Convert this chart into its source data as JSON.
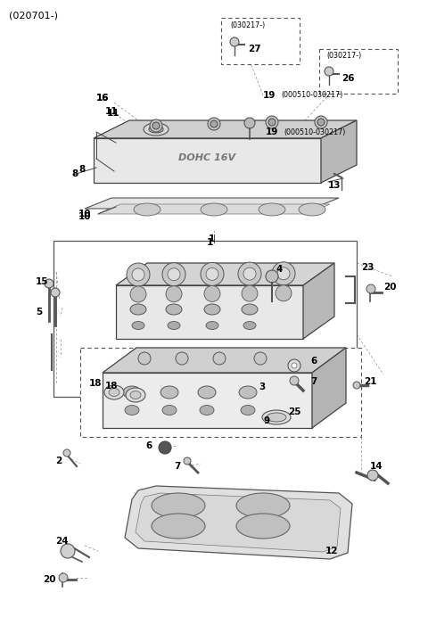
{
  "bg": "#ffffff",
  "fw": 4.8,
  "fh": 6.92,
  "dpi": 100,
  "lc": "#444444",
  "lw": 0.7,
  "label_fs": 7.5,
  "note_fs": 5.8
}
